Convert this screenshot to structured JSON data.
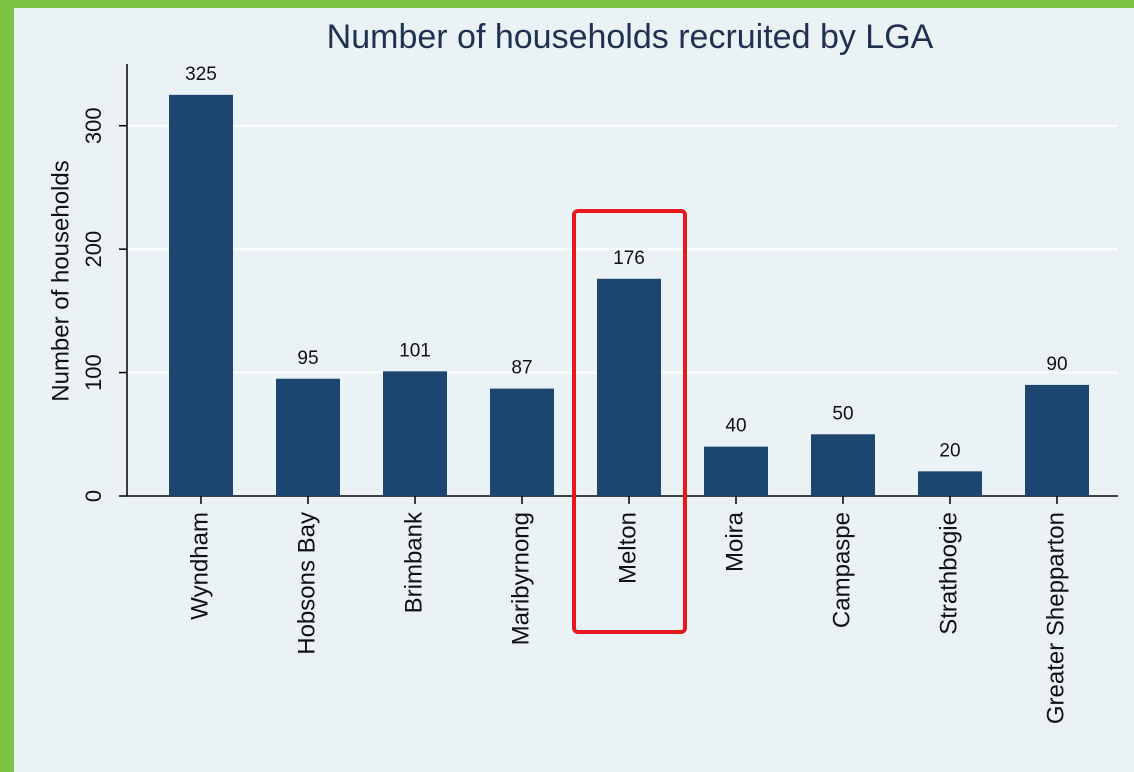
{
  "chart_data": {
    "type": "bar",
    "title": "Number of households recruited by LGA",
    "ylabel": "Number of households",
    "categories": [
      "Wyndham",
      "Hobsons Bay",
      "Brimbank",
      "Maribyrnong",
      "Melton",
      "Moira",
      "Campaspe",
      "Strathbogie",
      "Greater Shepparton"
    ],
    "values": [
      325,
      95,
      101,
      87,
      176,
      40,
      50,
      20,
      90
    ],
    "color": "#1c4670",
    "ylim": [
      0,
      350
    ],
    "yticks": [
      0,
      100,
      200,
      300
    ],
    "grid": true,
    "highlight": "Melton",
    "highlight_color": "#e8191c"
  }
}
